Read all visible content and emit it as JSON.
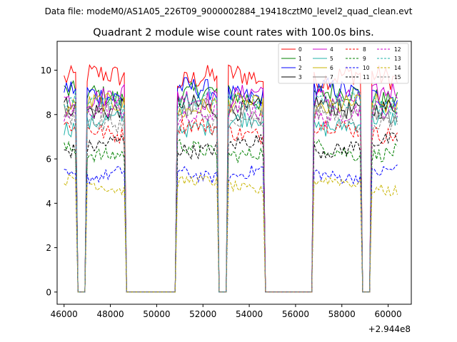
{
  "suptitle": "Data file: modeM0/AS1A05_226T09_9000002884_19418cztM0_level2_quad_clean.evt",
  "chart_data": {
    "type": "line",
    "title": "Quadrant 2 module wise count rates with 100.0s bins.",
    "xlabel": "",
    "ylabel": "",
    "x_offset_label": "+2.944e8",
    "xlim": [
      45700,
      61000
    ],
    "ylim": [
      -0.55,
      11.3
    ],
    "x_ticks": [
      46000,
      48000,
      50000,
      52000,
      54000,
      56000,
      58000,
      60000
    ],
    "x_tick_labels": [
      "46000",
      "48000",
      "50000",
      "52000",
      "54000",
      "56000",
      "58000",
      "60000"
    ],
    "y_ticks": [
      0,
      2,
      4,
      6,
      8,
      10
    ],
    "y_tick_labels": [
      "0",
      "2",
      "4",
      "6",
      "8",
      "10"
    ],
    "grid": false,
    "legend_position": "top-right",
    "legend_columns": 4,
    "segments": [
      [
        46000,
        46500
      ],
      [
        47000,
        48600
      ],
      [
        50900,
        52600
      ],
      [
        53100,
        54600
      ],
      [
        56800,
        58800
      ],
      [
        59300,
        60400
      ]
    ],
    "series": [
      {
        "name": "0",
        "color": "#ff0000",
        "style": "solid",
        "level": 9.6
      },
      {
        "name": "1",
        "color": "#008000",
        "style": "solid",
        "level": 8.8
      },
      {
        "name": "2",
        "color": "#0000ff",
        "style": "solid",
        "level": 9.0
      },
      {
        "name": "3",
        "color": "#000000",
        "style": "solid",
        "level": 8.4
      },
      {
        "name": "4",
        "color": "#cc00cc",
        "style": "solid",
        "level": 8.9
      },
      {
        "name": "5",
        "color": "#20b2aa",
        "style": "solid",
        "level": 7.6
      },
      {
        "name": "6",
        "color": "#c8b400",
        "style": "solid",
        "level": 8.3
      },
      {
        "name": "7",
        "color": "#808080",
        "style": "solid",
        "level": 8.1
      },
      {
        "name": "8",
        "color": "#ff0000",
        "style": "dashed",
        "level": 7.3
      },
      {
        "name": "9",
        "color": "#008000",
        "style": "dashed",
        "level": 6.4
      },
      {
        "name": "10",
        "color": "#0000ff",
        "style": "dashed",
        "level": 5.4
      },
      {
        "name": "11",
        "color": "#000000",
        "style": "dashed",
        "level": 6.6
      },
      {
        "name": "12",
        "color": "#cc00cc",
        "style": "dashed",
        "level": 8.0
      },
      {
        "name": "13",
        "color": "#20b2aa",
        "style": "dashed",
        "level": 8.5
      },
      {
        "name": "14",
        "color": "#c8b400",
        "style": "dashed",
        "level": 4.8
      },
      {
        "name": "15",
        "color": "#808080",
        "style": "dashed",
        "level": 7.8
      }
    ]
  }
}
